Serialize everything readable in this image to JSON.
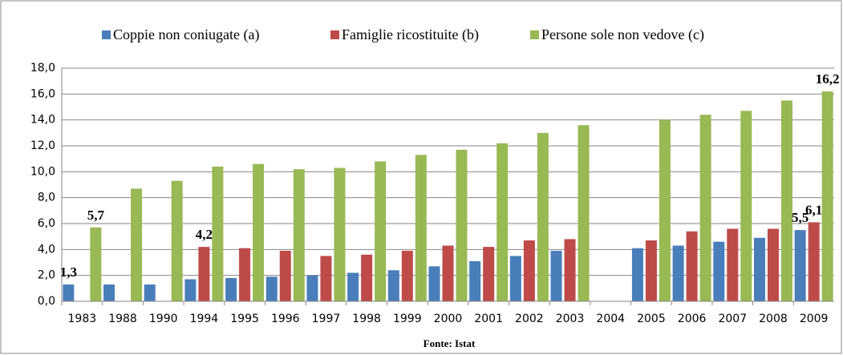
{
  "chart_data": {
    "type": "bar",
    "caption": "Fonte: Istat",
    "categories": [
      "1983",
      "1988",
      "1990",
      "1994",
      "1995",
      "1996",
      "1997",
      "1998",
      "1999",
      "2000",
      "2001",
      "2002",
      "2003",
      "2004",
      "2005",
      "2006",
      "2007",
      "2008",
      "2009"
    ],
    "series": [
      {
        "name": "Coppie non coniugate (a)",
        "color": "#4a7ebb",
        "values": [
          1.3,
          1.3,
          1.3,
          1.7,
          1.8,
          1.9,
          2.0,
          2.2,
          2.4,
          2.7,
          3.1,
          3.5,
          3.9,
          null,
          4.1,
          4.3,
          4.6,
          4.9,
          5.5
        ],
        "value_labels": [
          "1,3",
          null,
          null,
          null,
          null,
          null,
          null,
          null,
          null,
          null,
          null,
          null,
          null,
          null,
          null,
          null,
          null,
          null,
          "5,5"
        ]
      },
      {
        "name": "Famiglie ricostituite (b)",
        "color": "#be4b48",
        "values": [
          null,
          null,
          null,
          4.2,
          4.1,
          3.9,
          3.5,
          3.6,
          3.9,
          4.3,
          4.2,
          4.7,
          4.8,
          null,
          4.7,
          5.4,
          5.6,
          5.6,
          6.1
        ],
        "value_labels": [
          null,
          null,
          null,
          "4,2",
          null,
          null,
          null,
          null,
          null,
          null,
          null,
          null,
          null,
          null,
          null,
          null,
          null,
          null,
          "6,1"
        ]
      },
      {
        "name": "Persone sole non vedove (c)",
        "color": "#98b954",
        "values": [
          5.7,
          8.7,
          9.3,
          10.4,
          10.6,
          10.2,
          10.3,
          10.8,
          11.3,
          11.7,
          12.2,
          13.0,
          13.6,
          null,
          14.0,
          14.4,
          14.7,
          15.5,
          16.2
        ],
        "value_labels": [
          "5,7",
          null,
          null,
          null,
          null,
          null,
          null,
          null,
          null,
          null,
          null,
          null,
          null,
          null,
          null,
          null,
          null,
          null,
          "16,2"
        ]
      }
    ],
    "ylim": [
      0,
      18
    ],
    "yticks": [
      {
        "value": 0,
        "label": "0,0"
      },
      {
        "value": 2,
        "label": "2,0"
      },
      {
        "value": 4,
        "label": "4,0"
      },
      {
        "value": 6,
        "label": "6,0"
      },
      {
        "value": 8,
        "label": "8,0"
      },
      {
        "value": 10,
        "label": "10,0"
      },
      {
        "value": 12,
        "label": "12,0"
      },
      {
        "value": 14,
        "label": "14,0"
      },
      {
        "value": 16,
        "label": "16,0"
      },
      {
        "value": 18,
        "label": "18,0"
      }
    ],
    "grid": true,
    "legend": "top"
  }
}
